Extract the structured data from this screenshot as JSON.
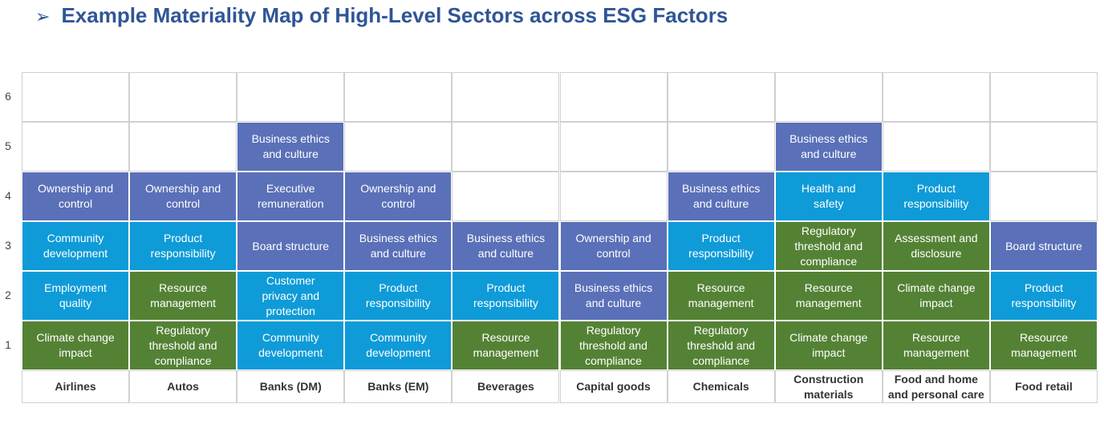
{
  "title": "Example Materiality Map of High-Level Sectors across ESG Factors",
  "levels": [
    "6",
    "5",
    "4",
    "3",
    "2",
    "1"
  ],
  "columns": [
    {
      "sector": "Airlines",
      "cells": [
        {
          "text": "Climate change impact",
          "color": "#548235"
        },
        {
          "text": "Employment quality",
          "color": "#0e9bd8"
        },
        {
          "text": "Community development",
          "color": "#0e9bd8"
        },
        {
          "text": "Ownership and control",
          "color": "#5a70b8"
        }
      ]
    },
    {
      "sector": "Autos",
      "cells": [
        {
          "text": "Regulatory threshold and compliance",
          "color": "#548235"
        },
        {
          "text": "Resource management",
          "color": "#548235"
        },
        {
          "text": "Product responsibility",
          "color": "#0e9bd8"
        },
        {
          "text": "Ownership and control",
          "color": "#5a70b8"
        }
      ]
    },
    {
      "sector": "Banks (DM)",
      "cells": [
        {
          "text": "Community development",
          "color": "#0e9bd8"
        },
        {
          "text": "Customer privacy and protection",
          "color": "#0e9bd8"
        },
        {
          "text": "Board structure",
          "color": "#5a70b8"
        },
        {
          "text": "Executive remuneration",
          "color": "#5a70b8"
        },
        {
          "text": "Business ethics and culture",
          "color": "#5a70b8"
        }
      ]
    },
    {
      "sector": "Banks (EM)",
      "cells": [
        {
          "text": "Community development",
          "color": "#0e9bd8"
        },
        {
          "text": "Product responsibility",
          "color": "#0e9bd8"
        },
        {
          "text": "Business ethics and culture",
          "color": "#5a70b8"
        },
        {
          "text": "Ownership and control",
          "color": "#5a70b8"
        }
      ]
    },
    {
      "sector": "Beverages",
      "cells": [
        {
          "text": "Resource management",
          "color": "#548235"
        },
        {
          "text": "Product responsibility",
          "color": "#0e9bd8"
        },
        {
          "text": "Business ethics and culture",
          "color": "#5a70b8"
        }
      ]
    },
    {
      "sector": "Capital goods",
      "cells": [
        {
          "text": "Regulatory threshold and compliance",
          "color": "#548235"
        },
        {
          "text": "Business ethics and culture",
          "color": "#5a70b8"
        },
        {
          "text": "Ownership and control",
          "color": "#5a70b8"
        }
      ]
    },
    {
      "sector": "Chemicals",
      "cells": [
        {
          "text": "Regulatory threshold and compliance",
          "color": "#548235"
        },
        {
          "text": "Resource management",
          "color": "#548235"
        },
        {
          "text": "Product responsibility",
          "color": "#0e9bd8"
        },
        {
          "text": "Business ethics and culture",
          "color": "#5a70b8"
        }
      ]
    },
    {
      "sector": "Construction materials",
      "cells": [
        {
          "text": "Climate change impact",
          "color": "#548235"
        },
        {
          "text": "Resource management",
          "color": "#548235"
        },
        {
          "text": "Regulatory threshold and compliance",
          "color": "#548235"
        },
        {
          "text": "Health and safety",
          "color": "#0e9bd8"
        },
        {
          "text": "Business ethics and culture",
          "color": "#5a70b8"
        }
      ]
    },
    {
      "sector": "Food and home and personal care",
      "cells": [
        {
          "text": "Resource management",
          "color": "#548235"
        },
        {
          "text": "Climate change impact",
          "color": "#548235"
        },
        {
          "text": "Assessment and disclosure",
          "color": "#548235"
        },
        {
          "text": "Product responsibility",
          "color": "#0e9bd8"
        }
      ]
    },
    {
      "sector": "Food retail",
      "cells": [
        {
          "text": "Resource management",
          "color": "#548235"
        },
        {
          "text": "Product responsibility",
          "color": "#0e9bd8"
        },
        {
          "text": "Board structure",
          "color": "#5a70b8"
        }
      ]
    }
  ]
}
